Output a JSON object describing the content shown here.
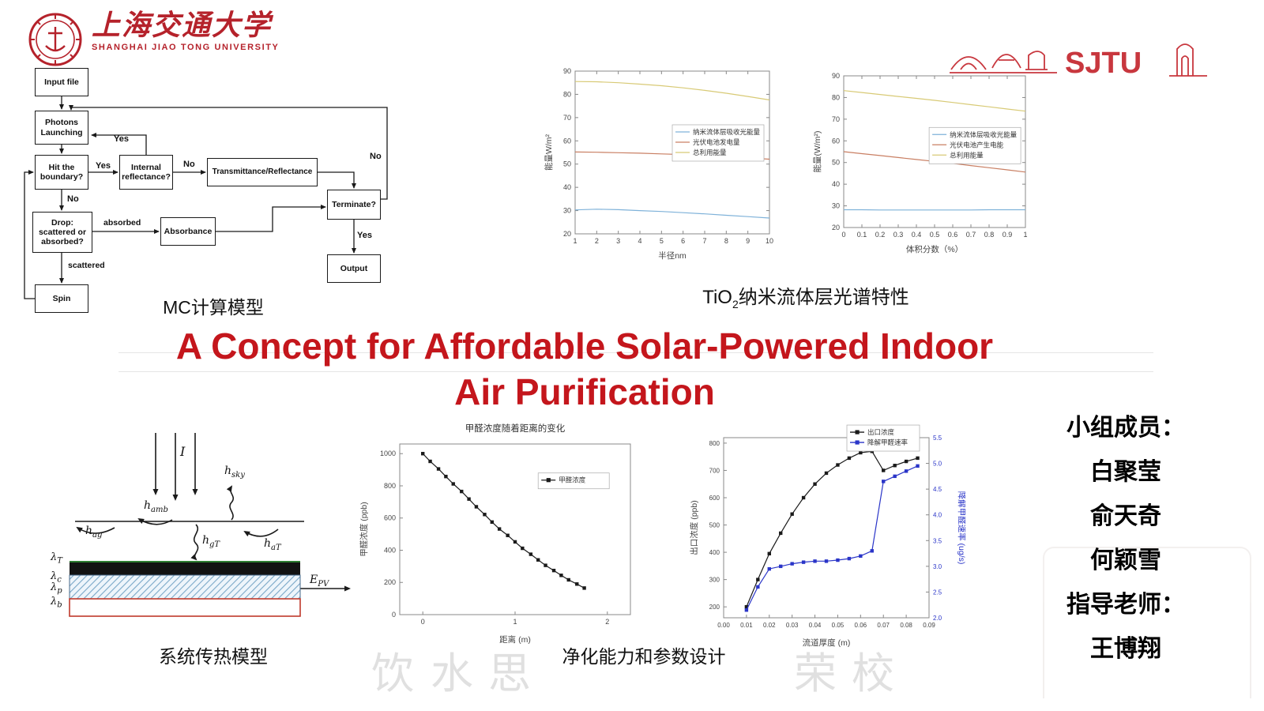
{
  "university": {
    "name_cn": "上海交通大学",
    "name_en": "SHANGHAI JIAO TONG UNIVERSITY",
    "skyline_text": "SJTU"
  },
  "title": {
    "line1": "A Concept for Affordable Solar-Powered Indoor",
    "line2": "Air Purification"
  },
  "flowchart": {
    "caption": "MC计算模型",
    "nodes": {
      "input": "Input file",
      "photons": "Photons Launching",
      "hit": "Hit the boundary?",
      "internal": "Internal reflectance?",
      "trans": "Transmittance/Reflectance",
      "drop": "Drop: scattered or absorbed?",
      "absorbance": "Absorbance",
      "terminate": "Terminate?",
      "output": "Output",
      "spin": "Spin"
    },
    "labels": {
      "yes_internal": "Yes",
      "yes_hit": "Yes",
      "no_internal": "No",
      "no_terminate": "No",
      "no_hit": "No",
      "absorbed": "absorbed",
      "scattered": "scattered",
      "yes_terminate": "Yes"
    }
  },
  "captions": {
    "spectral_prefix": "TiO",
    "spectral_sub": "2",
    "spectral_rest": "纳米流体层光谱特性",
    "heat": "系统传热模型",
    "purification": "净化能力和参数设计"
  },
  "heat": {
    "labels": {
      "intensity": {
        "base": "I",
        "sub": ""
      },
      "h_sky": {
        "base": "h",
        "sub": "sky"
      },
      "h_amb": {
        "base": "h",
        "sub": "amb"
      },
      "h_ag": {
        "base": "h",
        "sub": "ag"
      },
      "h_gT": {
        "base": "h",
        "sub": "gT"
      },
      "h_aT": {
        "base": "h",
        "sub": "aT"
      },
      "lambda_T": {
        "base": "λ",
        "sub": "T"
      },
      "lambda_c": {
        "base": "λ",
        "sub": "c"
      },
      "lambda_p": {
        "base": "λ",
        "sub": "p"
      },
      "lambda_b": {
        "base": "λ",
        "sub": "b"
      },
      "E_PV": {
        "base": "E",
        "sub": "PV"
      }
    }
  },
  "members": {
    "group_label": "小组成员：",
    "names": [
      "白聚莹",
      "俞天奇",
      "何颖雪"
    ],
    "advisor_label": "指导老师：",
    "advisor_name": "王博翔"
  },
  "watermark": [
    "饮",
    "水",
    "思",
    "荣",
    "校"
  ],
  "chart_data": [
    {
      "id": "spectral-vs-radius",
      "type": "line",
      "xlabel": "半径nm",
      "ylabel": "能量W/m²",
      "xlim": [
        1,
        10
      ],
      "ylim": [
        20,
        90
      ],
      "x_ticks": [
        1,
        2,
        3,
        4,
        5,
        6,
        7,
        8,
        9,
        10
      ],
      "y_ticks": [
        20,
        30,
        40,
        50,
        60,
        70,
        80,
        90
      ],
      "legend_position": "right-middle",
      "series": [
        {
          "name": "纳米流体层吸收光能量",
          "color": "#7fb2d9",
          "x": [
            1,
            2,
            3,
            4,
            5,
            6,
            7,
            8,
            9,
            10
          ],
          "y": [
            30.3,
            30.6,
            30.4,
            30.0,
            29.6,
            29.1,
            28.6,
            28.0,
            27.4,
            26.8
          ]
        },
        {
          "name": "光伏电池发电量",
          "color": "#c97f63",
          "x": [
            1,
            2,
            3,
            4,
            5,
            6,
            7,
            8,
            9,
            10
          ],
          "y": [
            55.2,
            55.1,
            54.9,
            54.7,
            54.4,
            54.1,
            53.7,
            53.2,
            52.7,
            52.1
          ]
        },
        {
          "name": "总利用能量",
          "color": "#d8ca76",
          "x": [
            1,
            2,
            3,
            4,
            5,
            6,
            7,
            8,
            9,
            10
          ],
          "y": [
            85.5,
            85.4,
            85.0,
            84.4,
            83.7,
            82.8,
            81.7,
            80.5,
            79.1,
            77.6
          ]
        }
      ]
    },
    {
      "id": "spectral-vs-volume-fraction",
      "type": "line",
      "xlabel": "体积分数（%）",
      "ylabel": "能量(W/m²)",
      "xlim": [
        0,
        1
      ],
      "ylim": [
        20,
        90
      ],
      "x_ticks": [
        0,
        0.1,
        0.2,
        0.3,
        0.4,
        0.5,
        0.6,
        0.7,
        0.8,
        0.9,
        1
      ],
      "y_ticks": [
        20,
        30,
        40,
        50,
        60,
        70,
        80,
        90
      ],
      "legend_position": "right-middle",
      "series": [
        {
          "name": "纳米流体层吸收光能量",
          "color": "#7fb2d9",
          "x": [
            0,
            0.1,
            0.2,
            0.3,
            0.4,
            0.5,
            0.6,
            0.7,
            0.8,
            0.9,
            1
          ],
          "y": [
            28.2,
            28.2,
            28.1,
            28.1,
            28.1,
            28.1,
            28.1,
            28.1,
            28.2,
            28.2,
            28.2
          ]
        },
        {
          "name": "光伏电池产生电能",
          "color": "#c97f63",
          "x": [
            0,
            0.1,
            0.2,
            0.3,
            0.4,
            0.5,
            0.6,
            0.7,
            0.8,
            0.9,
            1
          ],
          "y": [
            55.0,
            54.1,
            53.2,
            52.3,
            51.4,
            50.5,
            49.6,
            48.6,
            47.6,
            46.6,
            45.6
          ]
        },
        {
          "name": "总利用能量",
          "color": "#d8ca76",
          "x": [
            0,
            0.1,
            0.2,
            0.3,
            0.4,
            0.5,
            0.6,
            0.7,
            0.8,
            0.9,
            1
          ],
          "y": [
            83.2,
            82.3,
            81.4,
            80.5,
            79.6,
            78.7,
            77.7,
            76.7,
            75.7,
            74.7,
            73.7
          ]
        }
      ]
    },
    {
      "id": "formaldehyde-vs-distance",
      "type": "scatter-line",
      "title": "甲醛浓度随着距离的变化",
      "xlabel": "距离 (m)",
      "ylabel": "甲醛浓度 (ppb)",
      "xlim": [
        -0.25,
        2.25
      ],
      "ylim": [
        0,
        1060
      ],
      "x_ticks": [
        0,
        1,
        2
      ],
      "y_ticks": [
        0,
        200,
        400,
        600,
        800,
        1000
      ],
      "legend_position": "right-middle",
      "series": [
        {
          "name": "甲醛浓度",
          "color": "#1a1a1a",
          "marker": "square",
          "x": [
            0,
            0.08,
            0.17,
            0.25,
            0.33,
            0.42,
            0.5,
            0.58,
            0.67,
            0.75,
            0.83,
            0.92,
            1.0,
            1.08,
            1.17,
            1.25,
            1.33,
            1.42,
            1.5,
            1.58,
            1.67,
            1.75
          ],
          "y": [
            1000,
            952,
            905,
            858,
            812,
            765,
            718,
            670,
            622,
            575,
            532,
            492,
            452,
            412,
            375,
            340,
            306,
            274,
            244,
            216,
            190,
            165
          ]
        }
      ]
    },
    {
      "id": "outlet-vs-channel-thickness",
      "type": "scatter-line",
      "xlabel": "流道厚度 (m)",
      "ylabel": "出口浓度 (ppb)",
      "ylabel_right": "降解甲醛速率 (ug/s)",
      "xlim": [
        0,
        0.09
      ],
      "ylim": [
        160,
        820
      ],
      "ylim_right": [
        2.0,
        5.5
      ],
      "x_ticks": [
        0,
        0.01,
        0.02,
        0.03,
        0.04,
        0.05,
        0.06,
        0.07,
        0.08,
        0.09
      ],
      "y_ticks": [
        200,
        300,
        400,
        500,
        600,
        700,
        800
      ],
      "y_ticks_right": [
        2,
        2.5,
        3,
        3.5,
        4,
        4.5,
        5,
        5.5
      ],
      "legend_position": "top-right",
      "series": [
        {
          "name": "出口浓度",
          "color": "#1a1a1a",
          "marker": "square",
          "x": [
            0.01,
            0.015,
            0.02,
            0.025,
            0.03,
            0.035,
            0.04,
            0.045,
            0.05,
            0.055,
            0.06,
            0.065,
            0.07,
            0.075,
            0.08,
            0.085
          ],
          "y": [
            200,
            300,
            395,
            470,
            540,
            600,
            650,
            690,
            720,
            745,
            765,
            770,
            700,
            718,
            733,
            745
          ]
        },
        {
          "name": "降解甲醛速率",
          "color": "#2a35c8",
          "marker": "square",
          "axis": "right",
          "x": [
            0.01,
            0.015,
            0.02,
            0.025,
            0.03,
            0.035,
            0.04,
            0.045,
            0.05,
            0.055,
            0.06,
            0.065,
            0.07,
            0.075,
            0.08,
            0.085
          ],
          "y": [
            2.15,
            2.6,
            2.95,
            3.0,
            3.05,
            3.08,
            3.1,
            3.1,
            3.12,
            3.15,
            3.2,
            3.3,
            4.65,
            4.75,
            4.85,
            4.95
          ]
        }
      ]
    }
  ]
}
